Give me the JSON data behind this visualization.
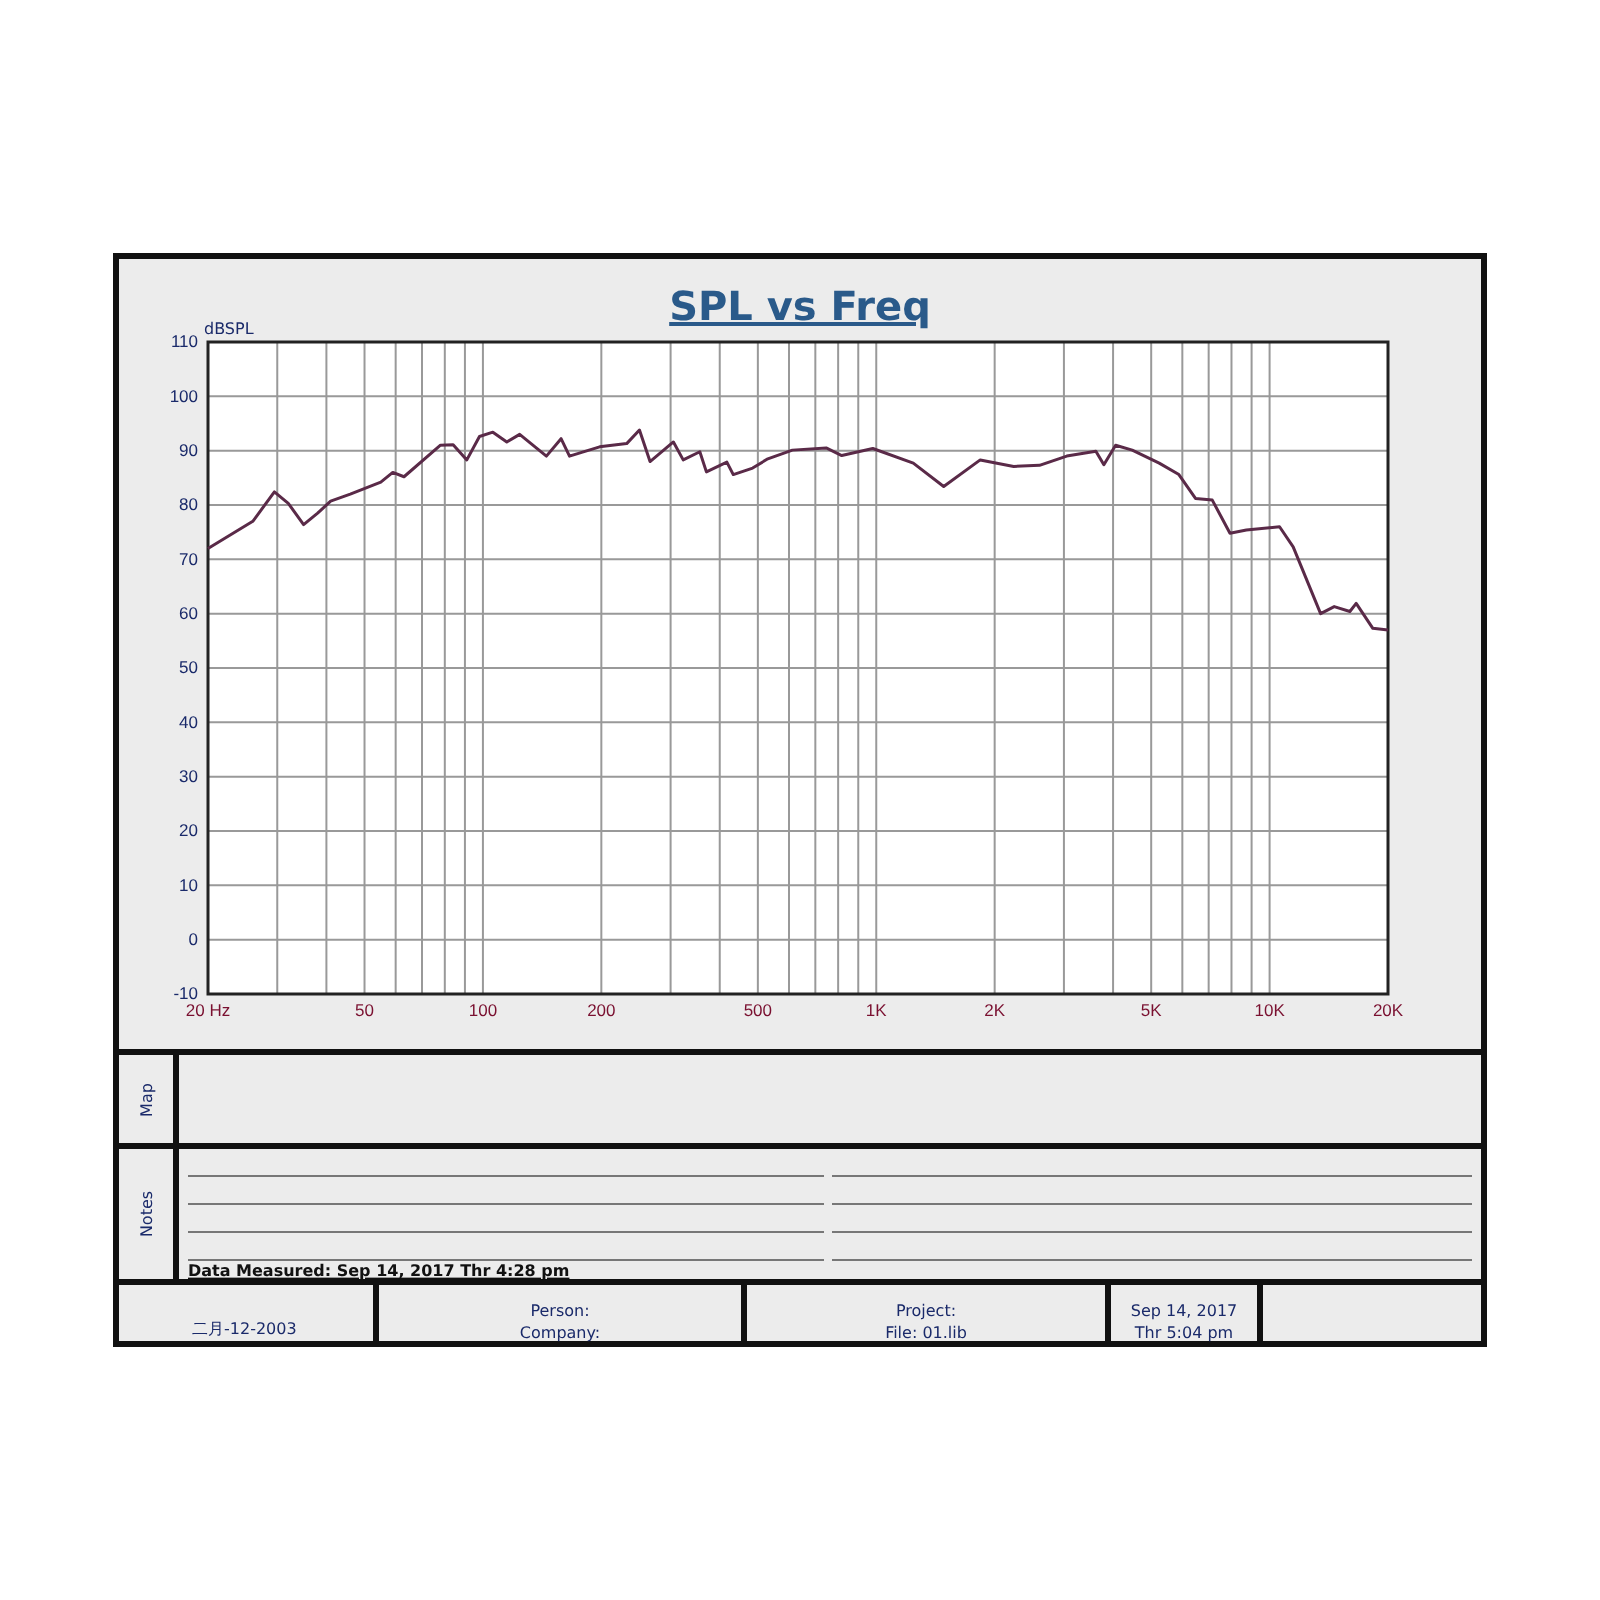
{
  "chart_data": {
    "type": "line",
    "title": "SPL vs Freq",
    "ylabel": "dBSPL",
    "log": "x",
    "grid": true,
    "legend": false,
    "marker": "none",
    "line_style": "solid",
    "xlim": [
      20,
      20000
    ],
    "ylim": [
      -10,
      110
    ],
    "xticks": [
      {
        "value": 20,
        "label": "20 Hz"
      },
      {
        "value": 30,
        "label": null
      },
      {
        "value": 40,
        "label": null
      },
      50,
      {
        "value": 60,
        "label": null
      },
      {
        "value": 70,
        "label": null
      },
      {
        "value": 80,
        "label": null
      },
      {
        "value": 90,
        "label": null
      },
      100,
      200,
      {
        "value": 300,
        "label": null
      },
      {
        "value": 400,
        "label": null
      },
      500,
      {
        "value": 600,
        "label": null
      },
      {
        "value": 700,
        "label": null
      },
      {
        "value": 800,
        "label": null
      },
      {
        "value": 900,
        "label": null
      },
      {
        "value": 1000,
        "label": "1K"
      },
      {
        "value": 2000,
        "label": "2K"
      },
      {
        "value": 3000,
        "label": null
      },
      {
        "value": 4000,
        "label": null
      },
      {
        "value": 5000,
        "label": "5K"
      },
      {
        "value": 6000,
        "label": null
      },
      {
        "value": 7000,
        "label": null
      },
      {
        "value": 8000,
        "label": null
      },
      {
        "value": 9000,
        "label": null
      },
      {
        "value": 10000,
        "label": "10K"
      },
      {
        "value": 20000,
        "label": "20K"
      }
    ],
    "yticks": [
      -10,
      0,
      10,
      20,
      30,
      40,
      50,
      60,
      70,
      80,
      90,
      100,
      110
    ],
    "series": [
      {
        "color": "#5a2a48",
        "x": [
          20,
          26,
          29.5,
          32,
          35,
          38,
          41,
          46,
          55,
          59,
          63,
          78,
          84,
          91,
          98,
          106,
          115,
          124,
          145,
          158,
          166,
          198,
          232,
          250,
          266,
          305,
          323,
          356,
          370,
          417,
          433,
          485,
          530,
          612,
          746,
          817,
          980,
          1242,
          1484,
          1838,
          2236,
          2600,
          3050,
          3617,
          3790,
          4060,
          4475,
          5240,
          5880,
          6480,
          7150,
          7930,
          8730,
          10600,
          11480,
          13480,
          14600,
          16000,
          16600,
          18300,
          20000
        ],
        "values": [
          72,
          77,
          82.4,
          80.3,
          76.4,
          78.5,
          80.7,
          82,
          84.2,
          86,
          85.2,
          91,
          91.1,
          88.3,
          92.6,
          93.4,
          91.6,
          93,
          89,
          92.2,
          89,
          90.7,
          91.3,
          93.8,
          88,
          91.6,
          88.3,
          89.8,
          86.1,
          87.9,
          85.6,
          86.8,
          88.5,
          90.1,
          90.5,
          89.1,
          90.4,
          87.7,
          83.4,
          88.3,
          87.1,
          87.3,
          89,
          89.9,
          87.4,
          91,
          90.1,
          87.7,
          85.6,
          81.2,
          80.9,
          74.8,
          75.4,
          76,
          72.3,
          60,
          61.3,
          60.4,
          61.9,
          57.3,
          57
        ]
      }
    ],
    "annotations": [
      "Map",
      "Notes",
      "Data Measured: Sep 14, 2017  Thr  4:28 pm",
      "二月-12-2003",
      "Person:",
      "Company:",
      "Project:",
      "File: 01.lib",
      "Sep 14, 2017",
      "Thr  5:04 pm"
    ]
  }
}
